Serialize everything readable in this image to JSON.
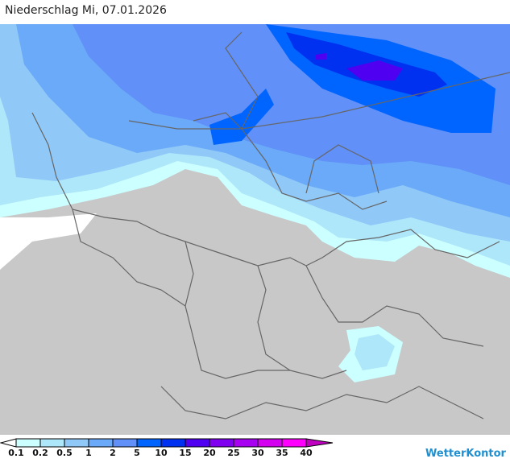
{
  "title": "Niederschlag Mi, 07.01.2026",
  "legend": {
    "labels": [
      "0.1",
      "0.2",
      "0.5",
      "1",
      "2",
      "5",
      "10",
      "15",
      "20",
      "25",
      "30",
      "35",
      "40"
    ],
    "colors": [
      "#ccffff",
      "#aee6fa",
      "#90c8f8",
      "#6aaaf8",
      "#6090f8",
      "#0064ff",
      "#0030f0",
      "#5000f0",
      "#8000f0",
      "#a800f0",
      "#d400f0",
      "#ff00ff",
      "#c000c0"
    ]
  },
  "brand": "WetterKontor",
  "land_color": "#c8c8c8"
}
